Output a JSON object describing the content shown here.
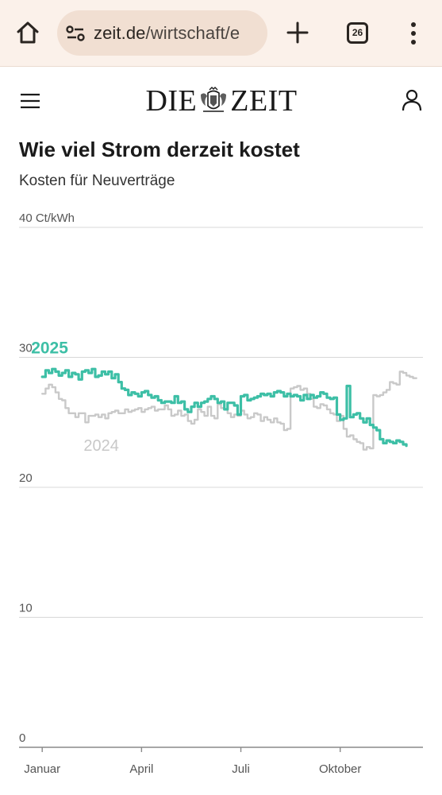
{
  "browser": {
    "url_domain": "zeit.de",
    "url_path": "/wirtschaft/e",
    "tab_count": "26"
  },
  "site": {
    "logo_left": "DIE",
    "logo_right": "ZEIT"
  },
  "article": {
    "title": "Wie viel Strom derzeit kostet",
    "subtitle": "Kosten für Neuverträge"
  },
  "colors": {
    "series_2025": "#3dbfa6",
    "series_2024": "#c9c9c9",
    "grid": "#d8d8d8",
    "browser_bar": "#fbf1ea"
  },
  "chart_data": {
    "type": "line",
    "unit": "Ct/kWh",
    "ylim": [
      0,
      40
    ],
    "y_ticks": [
      "0",
      "10",
      "20",
      "30",
      "40 Ct/kWh"
    ],
    "y_tick_values": [
      0,
      10,
      20,
      30,
      40
    ],
    "xlim": [
      -0.7,
      11.5
    ],
    "x_ticks": [
      "Januar",
      "April",
      "Juli",
      "Oktober"
    ],
    "x_tick_values": [
      0,
      3,
      6,
      9
    ],
    "grid": true,
    "series": [
      {
        "name": "2024",
        "x": [
          0,
          0.1,
          0.2,
          0.3,
          0.4,
          0.5,
          0.6,
          0.7,
          0.8,
          0.9,
          1.0,
          1.1,
          1.2,
          1.3,
          1.4,
          1.5,
          1.6,
          1.7,
          1.8,
          1.9,
          2.0,
          2.1,
          2.2,
          2.3,
          2.4,
          2.5,
          2.6,
          2.7,
          2.8,
          2.9,
          3.0,
          3.1,
          3.2,
          3.3,
          3.4,
          3.5,
          3.6,
          3.7,
          3.8,
          3.9,
          4.0,
          4.1,
          4.2,
          4.3,
          4.4,
          4.5,
          4.6,
          4.7,
          4.8,
          4.9,
          5.0,
          5.1,
          5.2,
          5.3,
          5.4,
          5.5,
          5.6,
          5.7,
          5.8,
          5.9,
          6.0,
          6.1,
          6.2,
          6.3,
          6.4,
          6.5,
          6.6,
          6.7,
          6.8,
          6.9,
          7.0,
          7.1,
          7.2,
          7.3,
          7.4,
          7.5,
          7.6,
          7.7,
          7.8,
          7.9,
          8.0,
          8.1,
          8.2,
          8.3,
          8.4,
          8.5,
          8.6,
          8.7,
          8.8,
          8.9,
          9.0,
          9.1,
          9.2,
          9.3,
          9.4,
          9.5,
          9.6,
          9.7,
          9.8,
          9.9,
          10.0,
          10.1,
          10.2,
          10.3,
          10.4,
          10.5,
          10.6,
          10.7,
          10.8,
          10.9,
          11.0,
          11.1,
          11.2,
          11.3
        ],
        "values": [
          27.2,
          27.6,
          27.9,
          27.7,
          27.3,
          26.8,
          26.7,
          26.1,
          25.7,
          25.7,
          25.4,
          25.7,
          25.7,
          25.0,
          25.5,
          25.5,
          25.6,
          25.4,
          25.6,
          25.3,
          25.7,
          25.8,
          25.9,
          25.7,
          25.7,
          26.0,
          25.8,
          25.9,
          26.0,
          26.1,
          25.8,
          26.0,
          26.1,
          26.2,
          25.9,
          26.0,
          26.0,
          26.3,
          26.0,
          25.5,
          25.6,
          25.9,
          25.5,
          25.6,
          25.1,
          24.9,
          25.2,
          26.0,
          25.8,
          25.5,
          26.2,
          25.5,
          25.3,
          26.4,
          26.1,
          26.0,
          25.7,
          25.4,
          25.6,
          25.5,
          25.9,
          25.6,
          25.3,
          25.4,
          25.7,
          25.6,
          25.1,
          25.4,
          25.2,
          25.0,
          25.3,
          25.0,
          24.9,
          24.4,
          24.5,
          27.6,
          27.7,
          27.8,
          27.5,
          27.6,
          27.2,
          26.8,
          26.2,
          26.1,
          26.4,
          26.3,
          26.0,
          25.7,
          25.6,
          25.1,
          25.5,
          24.5,
          23.9,
          24.0,
          23.7,
          23.5,
          23.4,
          22.9,
          23.1,
          23.0,
          27.1,
          27.0,
          27.1,
          27.3,
          27.5,
          28.1,
          28.0,
          27.9,
          28.9,
          28.8,
          28.6,
          28.5,
          28.4,
          28.4
        ]
      },
      {
        "name": "2025",
        "x": [
          0,
          0.1,
          0.2,
          0.3,
          0.4,
          0.5,
          0.6,
          0.7,
          0.8,
          0.9,
          1.0,
          1.1,
          1.2,
          1.3,
          1.4,
          1.5,
          1.6,
          1.7,
          1.8,
          1.9,
          2.0,
          2.1,
          2.2,
          2.3,
          2.4,
          2.5,
          2.6,
          2.7,
          2.8,
          2.9,
          3.0,
          3.1,
          3.2,
          3.3,
          3.4,
          3.5,
          3.6,
          3.7,
          3.8,
          3.9,
          4.0,
          4.1,
          4.2,
          4.3,
          4.4,
          4.5,
          4.6,
          4.7,
          4.8,
          4.9,
          5.0,
          5.1,
          5.2,
          5.3,
          5.4,
          5.5,
          5.6,
          5.7,
          5.8,
          5.9,
          6.0,
          6.1,
          6.2,
          6.3,
          6.4,
          6.5,
          6.6,
          6.7,
          6.8,
          6.9,
          7.0,
          7.1,
          7.2,
          7.3,
          7.4,
          7.5,
          7.6,
          7.7,
          7.8,
          7.9,
          8.0,
          8.1,
          8.2,
          8.3,
          8.4,
          8.5,
          8.6,
          8.7,
          8.8,
          8.9,
          9.0,
          9.1,
          9.2,
          9.3,
          9.4,
          9.5,
          9.6,
          9.7,
          9.8,
          9.9,
          10.0,
          10.1,
          10.2,
          10.3,
          10.4,
          10.5,
          10.6,
          10.7,
          10.8,
          10.9,
          11.0
        ],
        "values": [
          28.5,
          29.0,
          28.8,
          29.1,
          28.9,
          28.6,
          28.8,
          29.0,
          28.5,
          28.8,
          28.7,
          28.3,
          28.9,
          29.0,
          28.8,
          29.1,
          28.5,
          28.6,
          28.9,
          28.7,
          28.9,
          28.4,
          28.7,
          28.1,
          27.6,
          27.5,
          27.1,
          27.3,
          27.2,
          27.0,
          27.3,
          27.4,
          27.1,
          26.9,
          27.0,
          26.7,
          26.5,
          26.6,
          26.6,
          26.5,
          27.0,
          26.5,
          26.6,
          26.0,
          25.8,
          26.2,
          26.5,
          26.2,
          26.5,
          26.6,
          26.8,
          27.0,
          26.8,
          26.5,
          26.6,
          26.0,
          26.5,
          26.5,
          26.3,
          25.6,
          27.0,
          27.1,
          26.7,
          26.8,
          26.9,
          27.0,
          27.2,
          27.1,
          27.2,
          27.0,
          27.3,
          27.4,
          27.3,
          27.0,
          27.2,
          27.0,
          27.1,
          27.0,
          26.7,
          27.1,
          26.8,
          27.1,
          26.9,
          27.0,
          27.3,
          27.2,
          26.9,
          26.8,
          26.9,
          25.6,
          25.2,
          25.3,
          27.8,
          25.4,
          25.6,
          25.7,
          25.3,
          25.0,
          25.3,
          24.8,
          24.6,
          24.4,
          23.7,
          23.4,
          23.6,
          23.5,
          23.4,
          23.6,
          23.5,
          23.3,
          23.2
        ]
      }
    ]
  }
}
